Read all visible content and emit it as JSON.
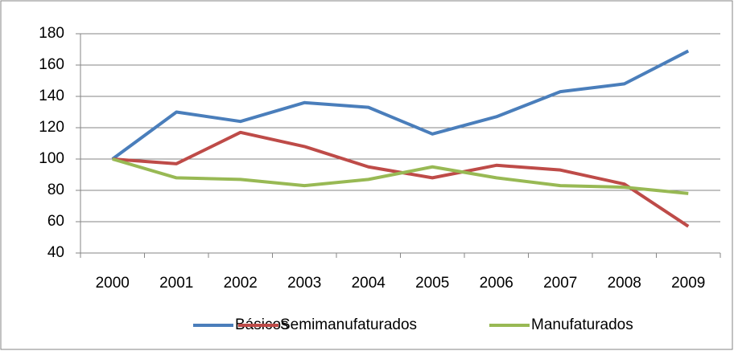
{
  "chart_data": {
    "type": "line",
    "categories": [
      "2000",
      "2001",
      "2002",
      "2003",
      "2004",
      "2005",
      "2006",
      "2007",
      "2008",
      "2009"
    ],
    "series": [
      {
        "name": "Básicos",
        "color": "#4a7ebb",
        "values": [
          100,
          130,
          124,
          136,
          133,
          116,
          127,
          143,
          148,
          169
        ]
      },
      {
        "name": "Semimanufaturados",
        "color": "#be4b48",
        "values": [
          100,
          97,
          117,
          108,
          95,
          88,
          96,
          93,
          84,
          57
        ]
      },
      {
        "name": "Manufaturados",
        "color": "#98b954",
        "values": [
          100,
          88,
          87,
          83,
          87,
          95,
          88,
          83,
          82,
          78
        ]
      }
    ],
    "ylim": [
      40,
      180
    ],
    "yticks": [
      40,
      60,
      80,
      100,
      120,
      140,
      160,
      180
    ],
    "grid": true,
    "legend": "bottom"
  }
}
